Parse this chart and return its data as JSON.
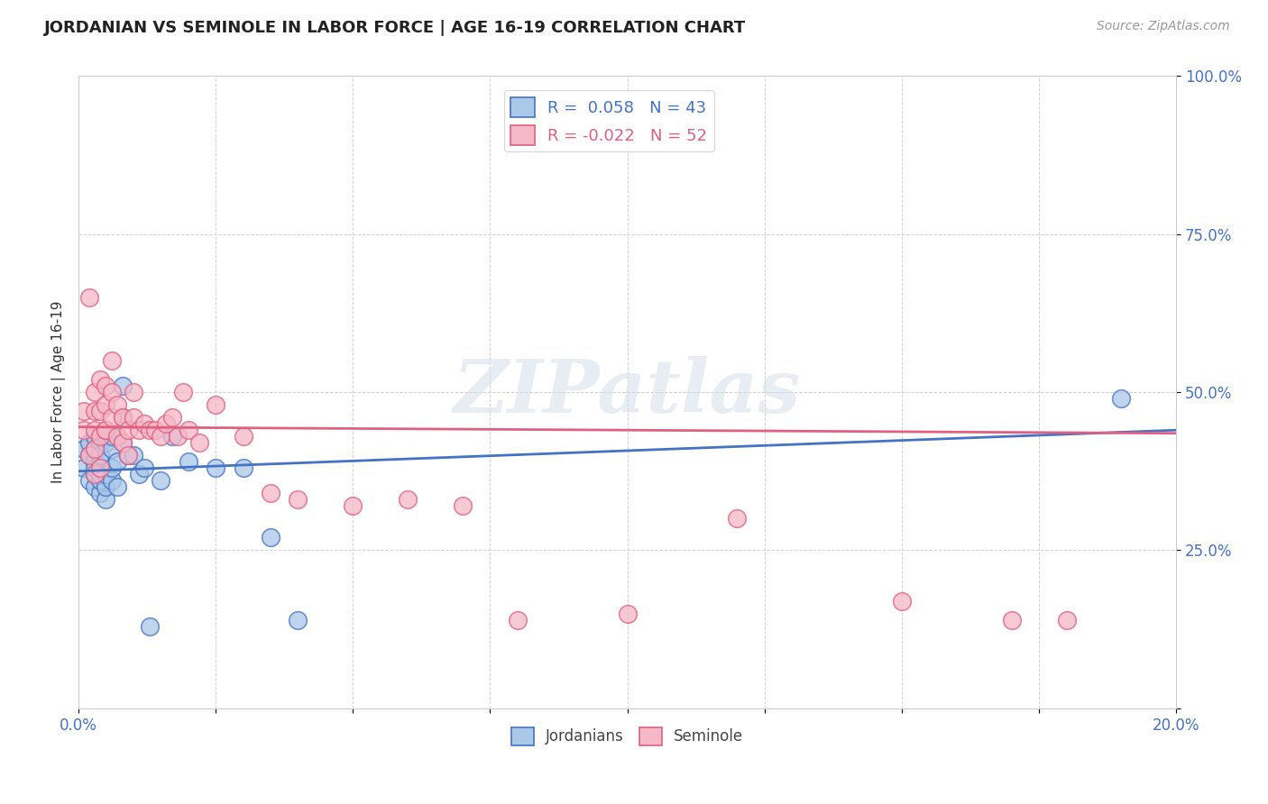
{
  "title": "JORDANIAN VS SEMINOLE IN LABOR FORCE | AGE 16-19 CORRELATION CHART",
  "source": "Source: ZipAtlas.com",
  "ylabel": "In Labor Force | Age 16-19",
  "xlim": [
    0.0,
    0.2
  ],
  "ylim": [
    0.0,
    1.0
  ],
  "xticks": [
    0.0,
    0.025,
    0.05,
    0.075,
    0.1,
    0.125,
    0.15,
    0.175,
    0.2
  ],
  "xtick_labels": [
    "0.0%",
    "",
    "",
    "",
    "",
    "",
    "",
    "",
    "20.0%"
  ],
  "yticks": [
    0.0,
    0.25,
    0.5,
    0.75,
    1.0
  ],
  "ytick_labels": [
    "",
    "25.0%",
    "50.0%",
    "75.0%",
    "100.0%"
  ],
  "legend_r1": "R =  0.058   N = 43",
  "legend_r2": "R = -0.022   N = 52",
  "watermark": "ZIPatlas",
  "jordanian_color": "#aac8e8",
  "seminole_color": "#f5b8c8",
  "jordanian_line_color": "#4472c4",
  "seminole_line_color": "#e06080",
  "background_color": "#ffffff",
  "jordanians_x": [
    0.001,
    0.001,
    0.002,
    0.002,
    0.002,
    0.003,
    0.003,
    0.003,
    0.003,
    0.003,
    0.003,
    0.004,
    0.004,
    0.004,
    0.004,
    0.004,
    0.004,
    0.005,
    0.005,
    0.005,
    0.005,
    0.006,
    0.006,
    0.006,
    0.006,
    0.007,
    0.007,
    0.008,
    0.008,
    0.009,
    0.01,
    0.011,
    0.012,
    0.013,
    0.015,
    0.017,
    0.02,
    0.025,
    0.03,
    0.035,
    0.04,
    0.19,
    0.008
  ],
  "jordanians_y": [
    0.38,
    0.41,
    0.36,
    0.4,
    0.42,
    0.35,
    0.37,
    0.39,
    0.41,
    0.43,
    0.38,
    0.34,
    0.36,
    0.37,
    0.39,
    0.42,
    0.4,
    0.33,
    0.35,
    0.37,
    0.42,
    0.36,
    0.38,
    0.41,
    0.43,
    0.35,
    0.39,
    0.46,
    0.51,
    0.4,
    0.4,
    0.37,
    0.38,
    0.13,
    0.36,
    0.43,
    0.39,
    0.38,
    0.38,
    0.27,
    0.14,
    0.49,
    0.42
  ],
  "seminole_x": [
    0.001,
    0.001,
    0.002,
    0.002,
    0.003,
    0.003,
    0.003,
    0.003,
    0.003,
    0.004,
    0.004,
    0.004,
    0.004,
    0.005,
    0.005,
    0.005,
    0.005,
    0.006,
    0.006,
    0.006,
    0.007,
    0.007,
    0.008,
    0.008,
    0.009,
    0.009,
    0.01,
    0.01,
    0.011,
    0.012,
    0.013,
    0.014,
    0.015,
    0.016,
    0.017,
    0.018,
    0.019,
    0.02,
    0.022,
    0.025,
    0.03,
    0.035,
    0.04,
    0.05,
    0.06,
    0.07,
    0.08,
    0.1,
    0.12,
    0.15,
    0.17,
    0.18
  ],
  "seminole_y": [
    0.44,
    0.47,
    0.4,
    0.65,
    0.37,
    0.41,
    0.44,
    0.47,
    0.5,
    0.38,
    0.43,
    0.47,
    0.52,
    0.44,
    0.48,
    0.51,
    0.44,
    0.46,
    0.5,
    0.55,
    0.43,
    0.48,
    0.42,
    0.46,
    0.4,
    0.44,
    0.46,
    0.5,
    0.44,
    0.45,
    0.44,
    0.44,
    0.43,
    0.45,
    0.46,
    0.43,
    0.5,
    0.44,
    0.42,
    0.48,
    0.43,
    0.34,
    0.33,
    0.32,
    0.33,
    0.32,
    0.14,
    0.15,
    0.3,
    0.17,
    0.14,
    0.14
  ],
  "j_trend_x0": 0.0,
  "j_trend_y0": 0.375,
  "j_trend_x1": 0.2,
  "j_trend_y1": 0.44,
  "s_trend_x0": 0.0,
  "s_trend_y0": 0.445,
  "s_trend_x1": 0.2,
  "s_trend_y1": 0.435
}
